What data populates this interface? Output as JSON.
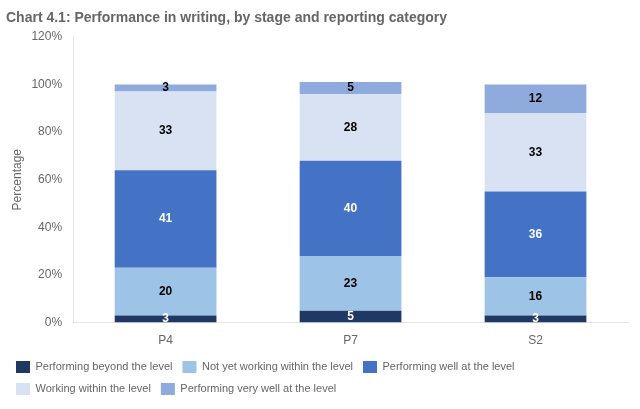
{
  "chart_data": {
    "type": "bar",
    "title": "Chart 4.1: Performance in writing, by stage and reporting category",
    "categories": [
      "P4",
      "P7",
      "S2"
    ],
    "ylabel": "Percentage",
    "ylim": [
      0,
      120
    ],
    "yticks": [
      {
        "value": 0,
        "label": "0%"
      },
      {
        "value": 20,
        "label": "20%"
      },
      {
        "value": 40,
        "label": "40%"
      },
      {
        "value": 60,
        "label": "60%"
      },
      {
        "value": 80,
        "label": "80%"
      },
      {
        "value": 100,
        "label": "100%"
      },
      {
        "value": 120,
        "label": "120%"
      }
    ],
    "series": [
      {
        "name": "Performing beyond the level",
        "color": "#1F3864",
        "values": [
          3,
          5,
          3
        ]
      },
      {
        "name": "Not yet working within the level",
        "color": "#9DC3E6",
        "values": [
          20,
          23,
          16
        ]
      },
      {
        "name": "Performing well at the level",
        "color": "#4472C4",
        "values": [
          41,
          40,
          36
        ]
      },
      {
        "name": "Working within the level",
        "color": "#D9E2F3",
        "values": [
          33,
          28,
          33
        ]
      },
      {
        "name": "Performing very well at the level",
        "color": "#8FAADC",
        "values": [
          3,
          5,
          12
        ]
      }
    ],
    "stacked": true,
    "data_labels": true,
    "grid": false,
    "legend": "bottom"
  }
}
